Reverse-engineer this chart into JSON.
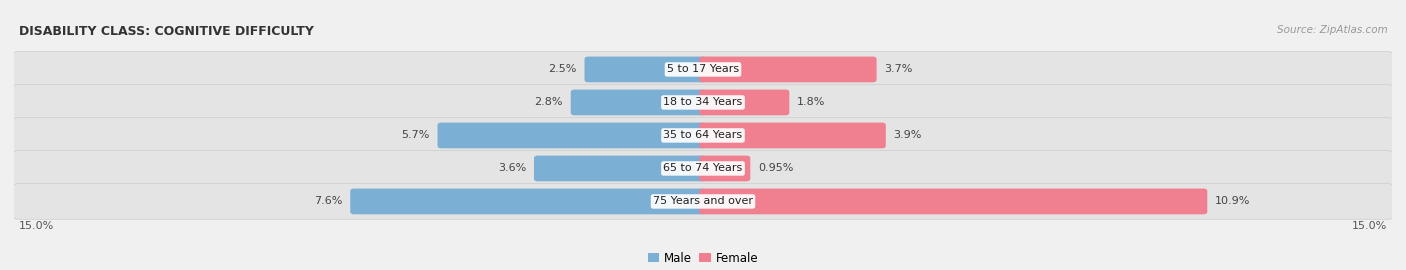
{
  "title": "DISABILITY CLASS: COGNITIVE DIFFICULTY",
  "source": "Source: ZipAtlas.com",
  "categories": [
    "5 to 17 Years",
    "18 to 34 Years",
    "35 to 64 Years",
    "65 to 74 Years",
    "75 Years and over"
  ],
  "male_values": [
    2.5,
    2.8,
    5.7,
    3.6,
    7.6
  ],
  "female_values": [
    3.7,
    1.8,
    3.9,
    0.95,
    10.9
  ],
  "male_labels": [
    "2.5%",
    "2.8%",
    "5.7%",
    "3.6%",
    "7.6%"
  ],
  "female_labels": [
    "3.7%",
    "1.8%",
    "3.9%",
    "0.95%",
    "10.9%"
  ],
  "male_color": "#7bafd4",
  "female_color": "#f08090",
  "row_bg_color": "#e4e4e4",
  "axis_max": 15.0,
  "axis_label_left": "15.0%",
  "axis_label_right": "15.0%",
  "title_fontsize": 9,
  "source_fontsize": 7.5,
  "label_fontsize": 8,
  "category_fontsize": 8,
  "legend_fontsize": 8.5,
  "background_color": "#f0f0f0"
}
